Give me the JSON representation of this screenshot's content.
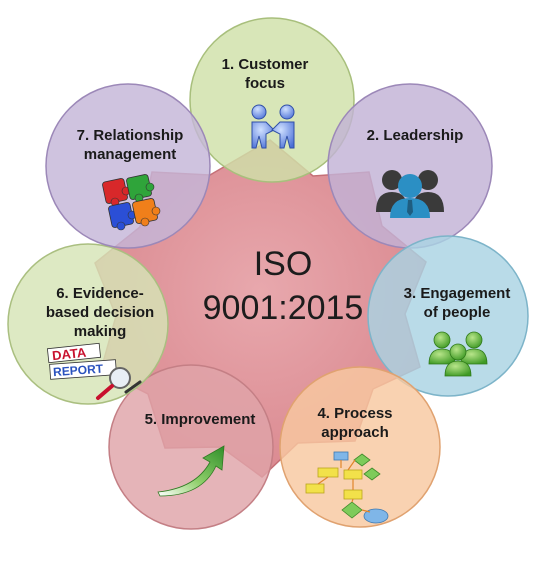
{
  "center": {
    "line1": "ISO",
    "line2": "9001:2015"
  },
  "principles": [
    {
      "line1": "1. Customer",
      "line2": "focus",
      "icon": "handshake-icon",
      "fill": "#cfe0a8",
      "stroke": "#a8bf7c"
    },
    {
      "line1": "2. Leadership",
      "line2": "",
      "icon": "leader-group-icon",
      "fill": "#c2b2d6",
      "stroke": "#9c88b8"
    },
    {
      "line1": "3. Engagement",
      "line2": "of people",
      "icon": "people-group-icon",
      "fill": "#a9d3e3",
      "stroke": "#7db4c9"
    },
    {
      "line1": "4. Process",
      "line2": "approach",
      "icon": "flowchart-icon",
      "fill": "#f8c8a0",
      "stroke": "#e0a270"
    },
    {
      "line1": "5. Improvement",
      "line2": "",
      "icon": "growth-arrow-icon",
      "fill": "#dfa4a8",
      "stroke": "#c47f85"
    },
    {
      "line1": "6. Evidence-",
      "line2": "based decision",
      "line3": "making",
      "icon": "data-report-icon",
      "fill": "#d6e4b6",
      "stroke": "#aabf80"
    },
    {
      "line1": "7. Relationship",
      "line2": "management",
      "icon": "puzzle-icon",
      "fill": "#c5b6d8",
      "stroke": "#9c88b8"
    }
  ],
  "icon_text": {
    "data": "DATA",
    "report": "REPORT"
  },
  "colors": {
    "center_star": "#d9898f",
    "center_star_stroke": "#c57077"
  }
}
